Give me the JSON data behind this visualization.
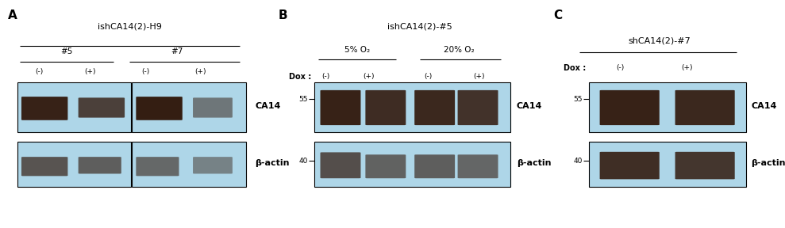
{
  "bg_color": "#ffffff",
  "text_color": "#000000",
  "band_dark": "#2a0e00",
  "blot_bg": "#aed6e8",
  "panel_A": {
    "label": "A",
    "title": "ishCA14(2)-H9",
    "groups": [
      "#5",
      "#7"
    ],
    "conditions": [
      "(-)",
      "(+)",
      "(-)",
      "(+)"
    ]
  },
  "panel_B": {
    "label": "B",
    "title": "ishCA14(2)-#5",
    "groups": [
      "5% O₂",
      "20% O₂"
    ],
    "dox_label": "Dox :",
    "conditions": [
      "(-)",
      "(+)",
      "(-)",
      "(+)"
    ],
    "mw_CA14": "55",
    "mw_actin": "40"
  },
  "panel_C": {
    "label": "C",
    "title": "shCA14(2)-#7",
    "dox_label": "Dox :",
    "conditions": [
      "(-)",
      "(+)"
    ],
    "mw_CA14": "55",
    "mw_actin": "40"
  }
}
